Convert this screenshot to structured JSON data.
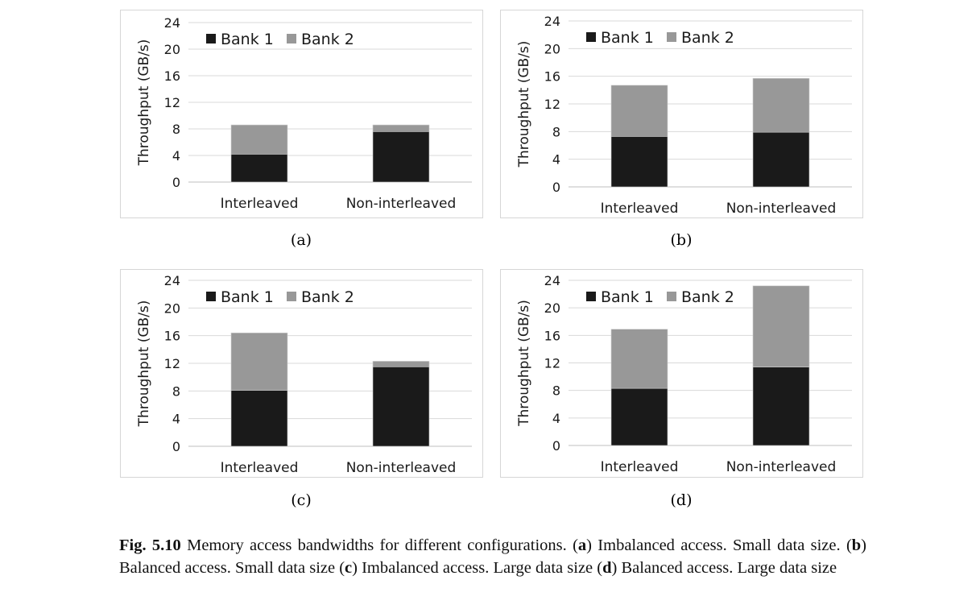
{
  "colors": {
    "bank1": "#1a1a1a",
    "bank2": "#989898",
    "grid": "#d9d9d9",
    "axis": "#bfbfbf"
  },
  "chart_data": [
    {
      "type": "bar",
      "stacked": true,
      "panel_label": "(a)",
      "categories": [
        "Interleaved",
        "Non-interleaved"
      ],
      "series": [
        {
          "name": "Bank 1",
          "values": [
            4.2,
            7.6
          ]
        },
        {
          "name": "Bank 2",
          "values": [
            4.4,
            1.0
          ]
        }
      ],
      "ylabel": "Throughput (GB/s)",
      "ylim": [
        0,
        24
      ],
      "yticks": [
        "0",
        "4",
        "8",
        "12",
        "16",
        "20",
        "24"
      ],
      "grid": true,
      "legend": "top-left"
    },
    {
      "type": "bar",
      "stacked": true,
      "panel_label": "(b)",
      "categories": [
        "Interleaved",
        "Non-interleaved"
      ],
      "series": [
        {
          "name": "Bank 1",
          "values": [
            7.3,
            7.9
          ]
        },
        {
          "name": "Bank 2",
          "values": [
            7.4,
            7.8
          ]
        }
      ],
      "ylabel": "Throughput (GB/s)",
      "ylim": [
        0,
        24
      ],
      "yticks": [
        "0",
        "4",
        "8",
        "12",
        "16",
        "20",
        "24"
      ],
      "grid": true,
      "legend": "top-left"
    },
    {
      "type": "bar",
      "stacked": true,
      "panel_label": "(c)",
      "categories": [
        "Interleaved",
        "Non-interleaved"
      ],
      "series": [
        {
          "name": "Bank 1",
          "values": [
            8.1,
            11.5
          ]
        },
        {
          "name": "Bank 2",
          "values": [
            8.3,
            0.8
          ]
        }
      ],
      "ylabel": "Throughput (GB/s)",
      "ylim": [
        0,
        24
      ],
      "yticks": [
        "0",
        "4",
        "8",
        "12",
        "16",
        "20",
        "24"
      ],
      "grid": true,
      "legend": "top-left"
    },
    {
      "type": "bar",
      "stacked": true,
      "panel_label": "(d)",
      "categories": [
        "Interleaved",
        "Non-interleaved"
      ],
      "series": [
        {
          "name": "Bank 1",
          "values": [
            8.3,
            11.4
          ]
        },
        {
          "name": "Bank 2",
          "values": [
            8.6,
            11.8
          ]
        }
      ],
      "ylabel": "Throughput (GB/s)",
      "ylim": [
        0,
        24
      ],
      "yticks": [
        "0",
        "4",
        "8",
        "12",
        "16",
        "20",
        "24"
      ],
      "grid": true,
      "legend": "top-left"
    }
  ],
  "caption": {
    "label": "Fig. 5.10",
    "text_1": "  Memory access bandwidths for different configurations. (",
    "a": "a",
    "text_2": ") Imbalanced access. Small data size. (",
    "b": "b",
    "text_3": ") Balanced access. Small data size (",
    "c": "c",
    "text_4": ") Imbalanced access. Large data size (",
    "d": "d",
    "text_5": ") Balanced access. Large data size"
  }
}
